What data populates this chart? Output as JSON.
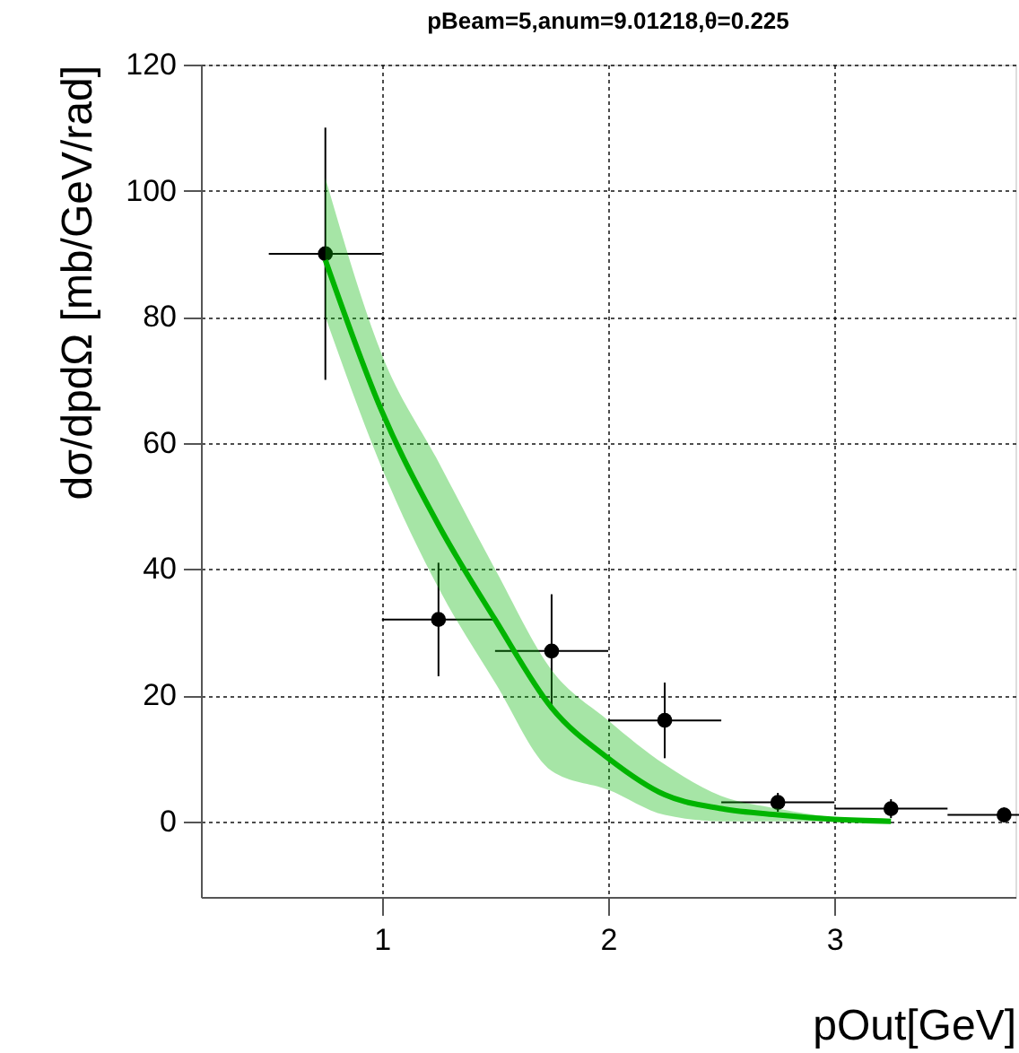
{
  "chart_data": {
    "type": "scatter",
    "title": "pBeam=5,anum=9.01218,θ=0.225",
    "xlabel": "pOut[GeV]",
    "ylabel": "dσ/dpdΩ [mb/GeV/rad]",
    "xlim": [
      0.2,
      3.8
    ],
    "xticks": [
      1,
      2,
      3
    ],
    "ylim": [
      -12,
      120
    ],
    "yticks": [
      0,
      20,
      40,
      60,
      80,
      100,
      120
    ],
    "grid": true,
    "marker": "circle",
    "series": [
      {
        "color": "#000000",
        "x": [
          0.75,
          1.25,
          1.75,
          2.25,
          2.75,
          3.25,
          3.75
        ],
        "values": [
          90,
          32,
          27,
          16,
          3,
          2,
          1
        ],
        "errors": [
          20,
          9,
          9,
          6,
          1.5,
          1.5,
          1.2
        ],
        "xerrors": [
          0.25,
          0.25,
          0.25,
          0.25,
          0.25,
          0.25,
          0.25
        ]
      },
      {
        "type": "line",
        "color": "#00b400",
        "line_style": "solid",
        "marker": "none",
        "x": [
          0.75,
          1.0,
          1.25,
          1.5,
          1.75,
          2.0,
          2.25,
          2.5,
          2.75,
          3.0,
          3.25
        ],
        "values": [
          89,
          65,
          47,
          32,
          18,
          10,
          4.2,
          2,
          1,
          0.3,
          0
        ],
        "lower": [
          80,
          56,
          37,
          22,
          8,
          5,
          1,
          0,
          0,
          0,
          0
        ],
        "upper": [
          102,
          74,
          57,
          40,
          24,
          16,
          9,
          4,
          2,
          0.6,
          0
        ]
      }
    ]
  }
}
